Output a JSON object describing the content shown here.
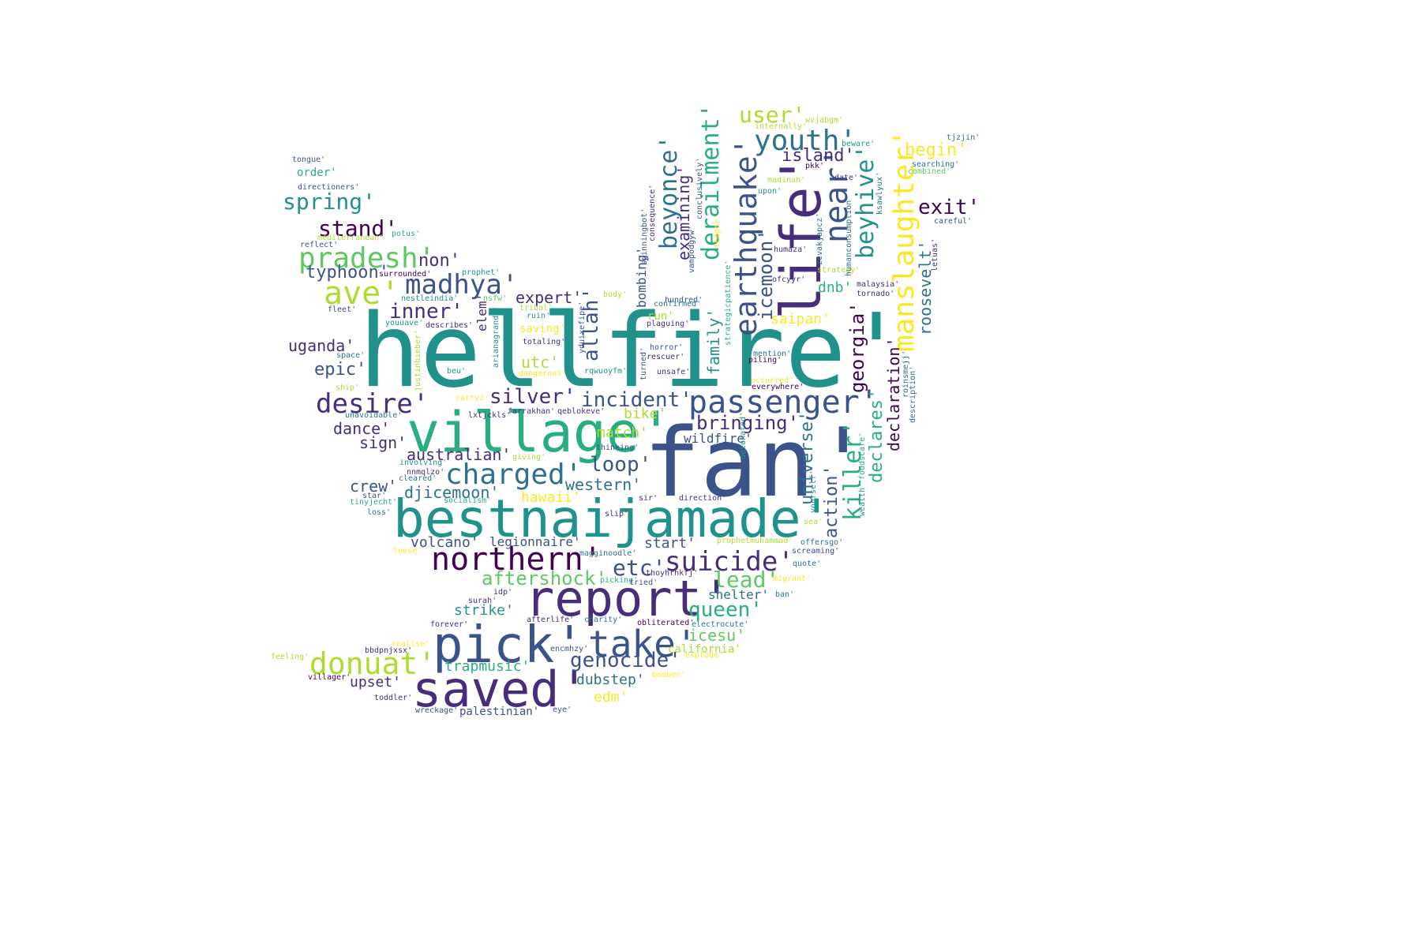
{
  "palette": {
    "d1": "#440154",
    "d2": "#472d7b",
    "d3": "#3b528b",
    "d4": "#2c728e",
    "d5": "#21918c",
    "d6": "#28ae80",
    "d7": "#5ec962",
    "d8": "#addc30",
    "d9": "#fde725"
  },
  "words": [
    {
      "text": "hellfire'",
      "color": "d5"
    },
    {
      "text": "fan'",
      "color": "d3"
    },
    {
      "text": "village'",
      "color": "d6"
    },
    {
      "text": "bestnaijamade'",
      "color": "d5"
    },
    {
      "text": "life'",
      "color": "d2"
    },
    {
      "text": "report'",
      "color": "d2"
    },
    {
      "text": "pick'",
      "color": "d3"
    },
    {
      "text": "saved'",
      "color": "d2"
    },
    {
      "text": "take'",
      "color": "d3"
    },
    {
      "text": "passenger'",
      "color": "d3"
    },
    {
      "text": "earthquake'",
      "color": "d3"
    },
    {
      "text": "near'",
      "color": "d3"
    },
    {
      "text": "manslaughter'",
      "color": "d9"
    },
    {
      "text": "northern'",
      "color": "d1"
    },
    {
      "text": "suicide'",
      "color": "d2"
    },
    {
      "text": "charged'",
      "color": "d4"
    },
    {
      "text": "donuat'",
      "color": "d8"
    },
    {
      "text": "youth'",
      "color": "d4"
    },
    {
      "text": "ave'",
      "color": "d8"
    },
    {
      "text": "pradesh'",
      "color": "d7"
    },
    {
      "text": "madhya'",
      "color": "d3"
    },
    {
      "text": "desire'",
      "color": "d2"
    },
    {
      "text": "beyonce'",
      "color": "d4"
    },
    {
      "text": "derailment'",
      "color": "d6"
    },
    {
      "text": "beyhive'",
      "color": "d5"
    },
    {
      "text": "genocide'",
      "color": "d3"
    },
    {
      "text": "stand'",
      "color": "d1"
    },
    {
      "text": "spring'",
      "color": "d5"
    },
    {
      "text": "user'",
      "color": "d8"
    },
    {
      "text": "exit'",
      "color": "d1"
    },
    {
      "text": "queen'",
      "color": "d6"
    },
    {
      "text": "killer'",
      "color": "d6"
    },
    {
      "text": "georgia'",
      "color": "d1"
    },
    {
      "text": "incident'",
      "color": "d3"
    },
    {
      "text": "silver'",
      "color": "d2"
    },
    {
      "text": "aftershock'",
      "color": "d7"
    },
    {
      "text": "etc'",
      "color": "d3"
    },
    {
      "text": "lead'",
      "color": "d7"
    },
    {
      "text": "loop'",
      "color": "d3"
    },
    {
      "text": "bringing'",
      "color": "d2"
    },
    {
      "text": "inner'",
      "color": "d2"
    },
    {
      "text": "allah'",
      "color": "d3"
    },
    {
      "text": "icemoon'",
      "color": "d3"
    },
    {
      "text": "begin'",
      "color": "d9"
    },
    {
      "text": "island'",
      "color": "d2"
    },
    {
      "text": "universe'",
      "color": "d4"
    },
    {
      "text": "action'",
      "color": "d3"
    },
    {
      "text": "declares'",
      "color": "d6"
    },
    {
      "text": "declaration'",
      "color": "d1"
    },
    {
      "text": "roosevelt'",
      "color": "d4"
    },
    {
      "text": "examining'",
      "color": "d2"
    },
    {
      "text": "family'",
      "color": "d5"
    },
    {
      "text": "typhoon'",
      "color": "d3"
    },
    {
      "text": "non'",
      "color": "d2"
    },
    {
      "text": "expert'",
      "color": "d2"
    },
    {
      "text": "uganda'",
      "color": "d2"
    },
    {
      "text": "epic'",
      "color": "d3"
    },
    {
      "text": "utc'",
      "color": "d8"
    },
    {
      "text": "dance'",
      "color": "d2"
    },
    {
      "text": "sign'",
      "color": "d2"
    },
    {
      "text": "australian'",
      "color": "d2"
    },
    {
      "text": "crew'",
      "color": "d3"
    },
    {
      "text": "djicemoon'",
      "color": "d4"
    },
    {
      "text": "western'",
      "color": "d4"
    },
    {
      "text": "hawaii'",
      "color": "d9"
    },
    {
      "text": "match'",
      "color": "d8"
    },
    {
      "text": "bike'",
      "color": "d8"
    },
    {
      "text": "wildfire'",
      "color": "d3"
    },
    {
      "text": "volcano'",
      "color": "d3"
    },
    {
      "text": "legionnaire'",
      "color": "d3"
    },
    {
      "text": "start'",
      "color": "d3"
    },
    {
      "text": "strike'",
      "color": "d5"
    },
    {
      "text": "icesu'",
      "color": "d7"
    },
    {
      "text": "trapmusic'",
      "color": "d6"
    },
    {
      "text": "dubstep'",
      "color": "d4"
    },
    {
      "text": "upset'",
      "color": "d2"
    },
    {
      "text": "edm'",
      "color": "d9"
    },
    {
      "text": "shelter'",
      "color": "d4"
    },
    {
      "text": "california'",
      "color": "d8"
    },
    {
      "text": "saipan'",
      "color": "d9"
    },
    {
      "text": "dnb'",
      "color": "d6"
    },
    {
      "text": "bombing'",
      "color": "d3"
    },
    {
      "text": "elem'",
      "color": "d2"
    },
    {
      "text": "run'",
      "color": "d8"
    },
    {
      "text": "saving'",
      "color": "d9"
    },
    {
      "text": "palestinian'",
      "color": "d3"
    },
    {
      "text": "order'",
      "color": "d6"
    },
    {
      "text": "directioners'",
      "color": "d3"
    },
    {
      "text": "tongue'",
      "color": "d3"
    },
    {
      "text": "mediterranean'",
      "color": "d8"
    },
    {
      "text": "potus'",
      "color": "d6"
    },
    {
      "text": "reflect'",
      "color": "d3"
    },
    {
      "text": "prophet'",
      "color": "d5"
    },
    {
      "text": "surrounded'",
      "color": "d1"
    },
    {
      "text": "nestleindia'",
      "color": "d5"
    },
    {
      "text": "nsfw'",
      "color": "d7"
    },
    {
      "text": "fleet'",
      "color": "d3"
    },
    {
      "text": "youuave'",
      "color": "d5"
    },
    {
      "text": "describes'",
      "color": "d2"
    },
    {
      "text": "space'",
      "color": "d4"
    },
    {
      "text": "ship'",
      "color": "d8"
    },
    {
      "text": "unavoidable'",
      "color": "d4"
    },
    {
      "text": "involving'",
      "color": "d5"
    },
    {
      "text": "nnmqlzo'",
      "color": "d2"
    },
    {
      "text": "cleared'",
      "color": "d4"
    },
    {
      "text": "star'",
      "color": "d3"
    },
    {
      "text": "tinyjecht'",
      "color": "d6"
    },
    {
      "text": "socialism'",
      "color": "d6"
    },
    {
      "text": "loss'",
      "color": "d4"
    },
    {
      "text": "loose'",
      "color": "d9"
    },
    {
      "text": "feeling'",
      "color": "d8"
    },
    {
      "text": "villager'",
      "color": "d1"
    },
    {
      "text": "realise'",
      "color": "d9"
    },
    {
      "text": "bbdpnjxsx'",
      "color": "d2"
    },
    {
      "text": "toddler'",
      "color": "d2"
    },
    {
      "text": "wreckage'",
      "color": "d3"
    },
    {
      "text": "forever'",
      "color": "d2"
    },
    {
      "text": "surah'",
      "color": "d2"
    },
    {
      "text": "idp'",
      "color": "d2"
    },
    {
      "text": "afterlife'",
      "color": "d2"
    },
    {
      "text": "charity'",
      "color": "d4"
    },
    {
      "text": "obliterated'",
      "color": "d1"
    },
    {
      "text": "electrocute'",
      "color": "d4"
    },
    {
      "text": "encmhzy'",
      "color": "d3"
    },
    {
      "text": "explode'",
      "color": "d9"
    },
    {
      "text": "bomber'",
      "color": "d9"
    },
    {
      "text": "eye'",
      "color": "d3"
    },
    {
      "text": "magginoodle'",
      "color": "d4"
    },
    {
      "text": "picking'",
      "color": "d6"
    },
    {
      "text": "thoyhrhkfj'",
      "color": "d2"
    },
    {
      "text": "tried'",
      "color": "d3"
    },
    {
      "text": "migrant'",
      "color": "d9"
    },
    {
      "text": "ban'",
      "color": "d4"
    },
    {
      "text": "quote'",
      "color": "d4"
    },
    {
      "text": "screaming'",
      "color": "d3"
    },
    {
      "text": "offersgo'",
      "color": "d4"
    },
    {
      "text": "prophetmuhammad'",
      "color": "d8"
    },
    {
      "text": "sea'",
      "color": "d8"
    },
    {
      "text": "slip'",
      "color": "d2"
    },
    {
      "text": "sir'",
      "color": "d2"
    },
    {
      "text": "direction'",
      "color": "d2"
    },
    {
      "text": "giving'",
      "color": "d8"
    },
    {
      "text": "thinking'",
      "color": "d3"
    },
    {
      "text": "farrakhan'",
      "color": "d2"
    },
    {
      "text": "qeblokeve'",
      "color": "d2"
    },
    {
      "text": "carryz'",
      "color": "d9"
    },
    {
      "text": "beu'",
      "color": "d5"
    },
    {
      "text": "dangerous'",
      "color": "d9"
    },
    {
      "text": "rqwuoyfm'",
      "color": "d5"
    },
    {
      "text": "unsafe'",
      "color": "d2"
    },
    {
      "text": "piling'",
      "color": "d1"
    },
    {
      "text": "mention'",
      "color": "d4"
    },
    {
      "text": "everywhere'",
      "color": "d1"
    },
    {
      "text": "occurred'",
      "color": "d9"
    },
    {
      "text": "horror'",
      "color": "d3"
    },
    {
      "text": "rescuer'",
      "color": "d2"
    },
    {
      "text": "totaling'",
      "color": "d2"
    },
    {
      "text": "ruin'",
      "color": "d5"
    },
    {
      "text": "hundred'",
      "color": "d3"
    },
    {
      "text": "plaguing'",
      "color": "d2"
    },
    {
      "text": "body'",
      "color": "d8"
    },
    {
      "text": "tribal'",
      "color": "d8"
    },
    {
      "text": "confirmed'",
      "color": "d4"
    },
    {
      "text": "ofcyyr'",
      "color": "d2"
    },
    {
      "text": "humaza'",
      "color": "d2"
    },
    {
      "text": "strategy'",
      "color": "d8"
    },
    {
      "text": "malaysia'",
      "color": "d2"
    },
    {
      "text": "tornado'",
      "color": "d2"
    },
    {
      "text": "careful'",
      "color": "d3"
    },
    {
      "text": "pkk'",
      "color": "d1"
    },
    {
      "text": "date'",
      "color": "d2"
    },
    {
      "text": "madinah'",
      "color": "d8"
    },
    {
      "text": "upon'",
      "color": "d5"
    },
    {
      "text": "internally'",
      "color": "d8"
    },
    {
      "text": "wvjabgm'",
      "color": "d8"
    },
    {
      "text": "beware'",
      "color": "d5"
    },
    {
      "text": "tjzjin'",
      "color": "d4"
    },
    {
      "text": "searching'",
      "color": "d4"
    },
    {
      "text": "combined'",
      "color": "d7"
    },
    {
      "text": "temper'",
      "color": "d9"
    },
    {
      "text": "consequence'",
      "color": "d2"
    },
    {
      "text": "spinningbot'",
      "color": "d3"
    },
    {
      "text": "conclusively'",
      "color": "d3"
    },
    {
      "text": "vampodgyw'",
      "color": "d3"
    },
    {
      "text": "strategicpatience'",
      "color": "d6"
    },
    {
      "text": "zevakjapcz'",
      "color": "d4"
    },
    {
      "text": "humanconsumption'",
      "color": "d4"
    },
    {
      "text": "ksawlyux'",
      "color": "d4"
    },
    {
      "text": "letuas'",
      "color": "d2"
    },
    {
      "text": "roinsmejj'",
      "color": "d4"
    },
    {
      "text": "description'",
      "color": "d4"
    },
    {
      "text": "foodscare'",
      "color": "d6"
    },
    {
      "text": "wealth'",
      "color": "d5"
    },
    {
      "text": "yourself'",
      "color": "d5"
    },
    {
      "text": "detonated'",
      "color": "d5"
    },
    {
      "text": "turned'",
      "color": "d3"
    },
    {
      "text": "yduixefipe'",
      "color": "d3"
    },
    {
      "text": "arianagrande'",
      "color": "d5"
    },
    {
      "text": "justinbieber'",
      "color": "d8"
    },
    {
      "text": "lxtjckls'",
      "color": "d2"
    }
  ]
}
